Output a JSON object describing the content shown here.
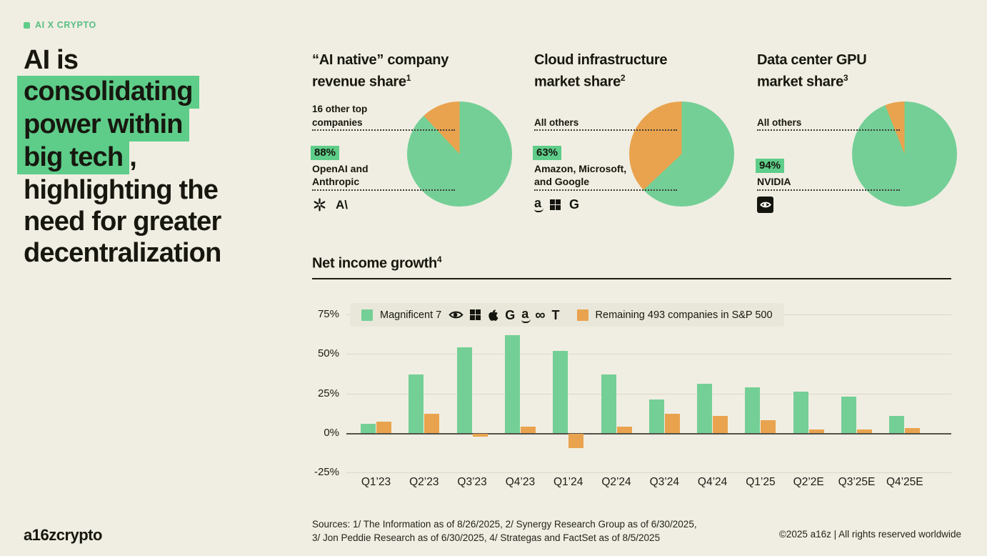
{
  "meta": {
    "tag_label": "AI X CRYPTO"
  },
  "colors": {
    "background": "#F0EEE2",
    "chart_green": "#74CF96",
    "chart_orange": "#E9A34E",
    "highlight_green": "#5ECD89",
    "text": "#17170F"
  },
  "headline": {
    "lines": [
      {
        "text": "AI is",
        "highlight": false
      },
      {
        "text": "consolidating",
        "highlight": true
      },
      {
        "text": "power within",
        "highlight": true
      },
      {
        "text": "big tech",
        "highlight": true,
        "suffix": ","
      },
      {
        "text": "highlighting the",
        "highlight": false
      },
      {
        "text": "need for greater",
        "highlight": false
      },
      {
        "text": "decentralization",
        "highlight": false
      }
    ]
  },
  "pies": [
    {
      "title_line1": "“AI native” company",
      "title_line2": "revenue share",
      "title_sup": "1",
      "top_label": "16 other top\ncompanies",
      "share_pct": "88%",
      "share_value": 88,
      "share_desc": "OpenAI and\nAnthropic",
      "icons": [
        "openai",
        "anthropic"
      ]
    },
    {
      "title_line1": "Cloud infrastructure",
      "title_line2": "market share",
      "title_sup": "2",
      "top_label": "All others",
      "share_pct": "63%",
      "share_value": 63,
      "share_desc": "Amazon, Microsoft,\nand Google",
      "icons": [
        "amazon",
        "microsoft",
        "google"
      ]
    },
    {
      "title_line1": "Data center GPU",
      "title_line2": "market share",
      "title_sup": "3",
      "top_label": "All others",
      "share_pct": "94%",
      "share_value": 94,
      "share_desc": "NVIDIA",
      "icons": [
        "nvidia-badge"
      ]
    }
  ],
  "bar_section": {
    "title": "Net income growth",
    "title_sup": "4"
  },
  "chart_data": [
    {
      "type": "pie",
      "title": "“AI native” company revenue share",
      "labels": [
        "OpenAI and Anthropic",
        "16 other top companies"
      ],
      "values": [
        88,
        12
      ]
    },
    {
      "type": "pie",
      "title": "Cloud infrastructure market share",
      "labels": [
        "Amazon, Microsoft, and Google",
        "All others"
      ],
      "values": [
        63,
        37
      ]
    },
    {
      "type": "pie",
      "title": "Data center GPU market share",
      "labels": [
        "NVIDIA",
        "All others"
      ],
      "values": [
        94,
        6
      ]
    },
    {
      "type": "bar",
      "title": "Net income growth",
      "categories": [
        "Q1’23",
        "Q2’23",
        "Q3’23",
        "Q4’23",
        "Q1’24",
        "Q2’24",
        "Q3’24",
        "Q4’24",
        "Q1’25",
        "Q2’2E",
        "Q3’25E",
        "Q4’25E"
      ],
      "series": [
        {
          "name": "Magnificent 7",
          "color": "#74CF96",
          "icons": [
            "nvidia",
            "microsoft",
            "apple",
            "google",
            "amazon",
            "meta",
            "tesla"
          ],
          "values": [
            6,
            37,
            54,
            62,
            52,
            37,
            21,
            31,
            29,
            26,
            23,
            11
          ]
        },
        {
          "name": "Remaining 493 companies in S&P 500",
          "color": "#E9A34E",
          "values": [
            7,
            12,
            -2,
            4,
            -9,
            4,
            12,
            11,
            8,
            2,
            2,
            3
          ]
        }
      ],
      "ylim": [
        -25,
        75
      ],
      "ytick_values": [
        75,
        50,
        25,
        0,
        -25
      ],
      "ytick_labels": [
        "75%",
        "50%",
        "25%",
        "0%",
        "-25%"
      ],
      "grid": true,
      "legend_position": "top"
    }
  ],
  "sources": {
    "line1": "Sources: 1/ The Information as of 8/26/2025, 2/ Synergy Research Group as of 6/30/2025,",
    "line2": "3/ Jon Peddie Research as of 6/30/2025, 4/ Strategas and FactSet as of 8/5/2025"
  },
  "footer": {
    "logo": "a16zcrypto",
    "copyright": "©2025 a16z | All rights reserved worldwide"
  }
}
